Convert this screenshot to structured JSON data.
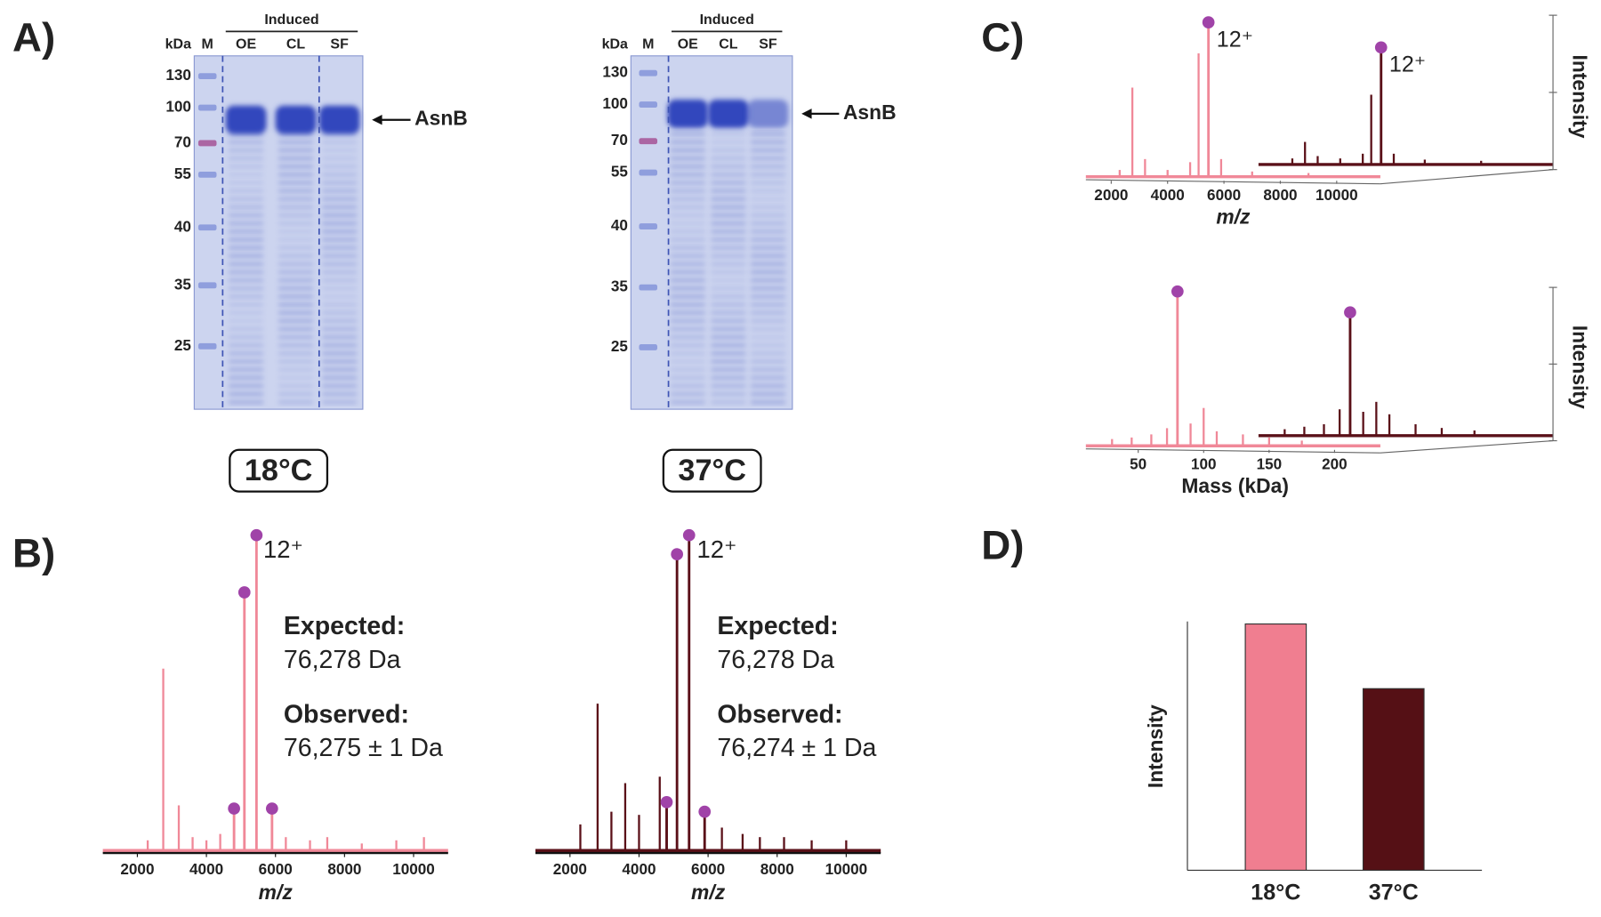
{
  "panel_labels": [
    "A)",
    "B)",
    "C)",
    "D)"
  ],
  "gels": [
    {
      "temperature": "18°C",
      "induced_label": "Induced",
      "unit_label": "kDa",
      "lanes": [
        "M",
        "OE",
        "CL",
        "SF"
      ],
      "markers": [
        "130",
        "100",
        "70",
        "55",
        "40",
        "35",
        "25"
      ],
      "band_label": "AsnB"
    },
    {
      "temperature": "37°C",
      "induced_label": "Induced",
      "unit_label": "kDa",
      "lanes": [
        "M",
        "OE",
        "CL",
        "SF"
      ],
      "markers": [
        "130",
        "100",
        "70",
        "55",
        "40",
        "35",
        "25"
      ],
      "band_label": "AsnB"
    }
  ],
  "chart_data": [
    {
      "type": "line",
      "xlabel": "m/z",
      "xlim": [
        1000,
        11000
      ],
      "xticks": [
        2000,
        4000,
        6000,
        8000,
        10000
      ],
      "ylim": [
        0,
        100
      ],
      "series": [
        {
          "color": "#f08898",
          "x": [
            2300,
            2750,
            3200,
            3600,
            4000,
            4400,
            4800,
            5100,
            5450,
            5900,
            6300,
            7000,
            7500,
            8500,
            9500,
            10300
          ],
          "values": [
            4,
            58,
            15,
            5,
            4,
            6,
            14,
            82,
            100,
            14,
            5,
            4,
            5,
            3,
            4,
            5
          ],
          "marker": {
            "color": "#a043a8",
            "x": [
              4800,
              5100,
              5450,
              5900
            ],
            "values": [
              14,
              82,
              100,
              14
            ]
          }
        }
      ],
      "annotations": {
        "charge": "12⁺",
        "expected_label": "Expected:",
        "expected": "76,278 Da",
        "observed_label": "Observed:",
        "observed": "76,275 ± 1 Da"
      }
    },
    {
      "type": "line",
      "xlabel": "m/z",
      "xlim": [
        1000,
        11000
      ],
      "xticks": [
        2000,
        4000,
        6000,
        8000,
        10000
      ],
      "ylim": [
        0,
        100
      ],
      "series": [
        {
          "color": "#5a1018",
          "x": [
            2300,
            2800,
            3200,
            3600,
            4000,
            4600,
            4800,
            5100,
            5450,
            5900,
            6400,
            7000,
            7500,
            8200,
            9000,
            10000
          ],
          "values": [
            9,
            47,
            13,
            22,
            12,
            24,
            16,
            94,
            100,
            13,
            8,
            6,
            5,
            5,
            4,
            4
          ],
          "marker": {
            "color": "#a043a8",
            "x": [
              4800,
              5100,
              5450,
              5900
            ],
            "values": [
              16,
              94,
              100,
              13
            ]
          }
        }
      ],
      "annotations": {
        "charge": "12⁺",
        "expected_label": "Expected:",
        "expected": "76,278 Da",
        "observed_label": "Observed:",
        "observed": "76,274 ± 1 Da"
      }
    },
    {
      "type": "line",
      "xlabel": "m/z",
      "ylabel": "Intensity",
      "xlim": [
        1100,
        11550
      ],
      "xticks": [
        2000,
        4000,
        6000,
        8000,
        10000
      ],
      "ylim": [
        0,
        100
      ],
      "series": [
        {
          "color": "#f08898",
          "x": [
            2300,
            2750,
            3200,
            4000,
            4800,
            5100,
            5450,
            5900,
            7000,
            9000
          ],
          "values": [
            5,
            58,
            12,
            5,
            10,
            80,
            100,
            12,
            4,
            3
          ],
          "marker": {
            "color": "#a043a8",
            "x": [
              5450
            ],
            "values": [
              100
            ]
          }
        },
        {
          "color": "#5a1018",
          "x": [
            2300,
            2750,
            3200,
            4000,
            4800,
            5100,
            5450,
            5900,
            7000,
            9000
          ],
          "values": [
            6,
            20,
            8,
            6,
            10,
            60,
            100,
            10,
            5,
            4
          ],
          "marker": {
            "color": "#a043a8",
            "x": [
              5450
            ],
            "values": [
              100
            ]
          }
        }
      ],
      "annotations": [
        "12⁺",
        "12⁺"
      ]
    },
    {
      "type": "line",
      "xlabel": "Mass (kDa)",
      "ylabel": "Intensity",
      "xlim": [
        10,
        235
      ],
      "xticks": [
        50,
        100,
        150,
        200
      ],
      "ylim": [
        0,
        100
      ],
      "series": [
        {
          "color": "#f08898",
          "x": [
            30,
            45,
            60,
            72,
            80,
            90,
            100,
            110,
            130,
            150,
            175
          ],
          "values": [
            5,
            6,
            8,
            12,
            100,
            15,
            25,
            10,
            8,
            6,
            4
          ],
          "marker": {
            "color": "#a043a8",
            "x": [
              80
            ],
            "values": [
              100
            ]
          }
        },
        {
          "color": "#5a1018",
          "x": [
            30,
            45,
            60,
            72,
            80,
            90,
            100,
            110,
            130,
            150,
            175
          ],
          "values": [
            6,
            8,
            10,
            22,
            100,
            20,
            28,
            18,
            10,
            7,
            5
          ],
          "marker": {
            "color": "#a043a8",
            "x": [
              80
            ],
            "values": [
              100
            ]
          }
        }
      ]
    },
    {
      "type": "bar",
      "ylabel": "Intensity",
      "categories": [
        "18°C",
        "37°C"
      ],
      "values": [
        99,
        73
      ],
      "colors": [
        "#f07e90",
        "#551015"
      ],
      "ylim": [
        0,
        100
      ]
    }
  ]
}
